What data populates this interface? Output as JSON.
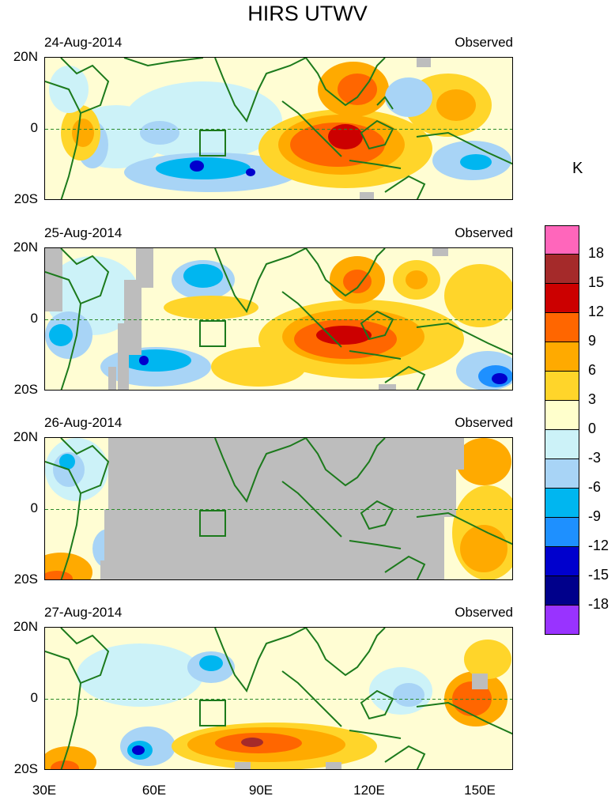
{
  "title": "HIRS UTWV",
  "colorbar": {
    "unit": "K",
    "colors": [
      "#ff66bb",
      "#a52a2a",
      "#cc0000",
      "#ff6600",
      "#ffaa00",
      "#ffd52a",
      "#ffffcc",
      "#ccf2f8",
      "#a8d4f6",
      "#00b6f0",
      "#1e90ff",
      "#0000cd",
      "#00008b",
      "#9933ff"
    ],
    "labels": [
      "18",
      "15",
      "12",
      "9",
      "6",
      "3",
      "0",
      "-3",
      "-6",
      "-9",
      "-12",
      "-15",
      "-18"
    ]
  },
  "axes": {
    "lat_top": "20N",
    "lat_mid": "0",
    "lat_bottom": "20S",
    "lon_labels": [
      "30E",
      "60E",
      "90E",
      "120E",
      "150E"
    ]
  },
  "panels": [
    {
      "date": "24-Aug-2014",
      "label": "Observed"
    },
    {
      "date": "25-Aug-2014",
      "label": "Observed"
    },
    {
      "date": "26-Aug-2014",
      "label": "Observed"
    },
    {
      "date": "27-Aug-2014",
      "label": "Observed"
    }
  ]
}
